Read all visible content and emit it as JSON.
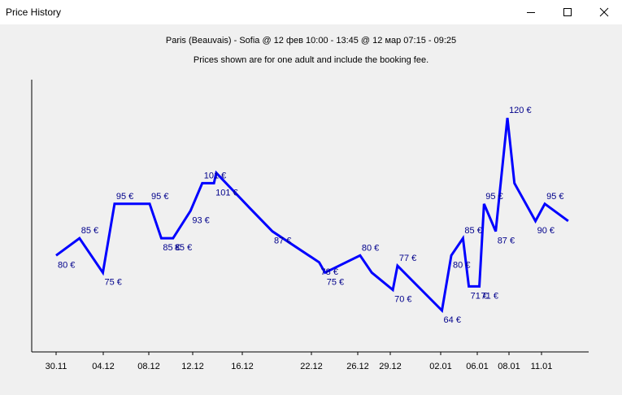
{
  "window": {
    "title": "Price History",
    "minimize_icon": "minimize-icon",
    "maximize_icon": "maximize-icon",
    "close_icon": "close-icon"
  },
  "header": {
    "route": "Paris (Beauvais) - Sofia @ 12 фев 10:00 - 13:45 @ 12 мар 07:15 - 09:25",
    "note": "Prices shown are for one adult and include the booking fee."
  },
  "chart_data": {
    "type": "line",
    "title": "",
    "xlabel": "",
    "ylabel": "",
    "line_color": "#0000ff",
    "label_color": "#00008b",
    "grid": false,
    "ylim": [
      55,
      128
    ],
    "x_ticks": [
      "30.11",
      "04.12",
      "08.12",
      "12.12",
      "16.12",
      "22.12",
      "26.12",
      "29.12",
      "02.01",
      "06.01",
      "08.01",
      "11.01"
    ],
    "points": [
      {
        "day": 0,
        "price": 80,
        "label": "80 €"
      },
      {
        "day": 2,
        "price": 85,
        "label": "85 €"
      },
      {
        "day": 4,
        "price": 75,
        "label": "75 €"
      },
      {
        "day": 5,
        "price": 95,
        "label": "95 €"
      },
      {
        "day": 8,
        "price": 95,
        "label": "95 €"
      },
      {
        "day": 9,
        "price": 85,
        "label": "85 €"
      },
      {
        "day": 10,
        "price": 85,
        "label": "85 €"
      },
      {
        "day": 11.5,
        "price": 93,
        "label": "93 €"
      },
      {
        "day": 12.5,
        "price": 101,
        "label": "101 €"
      },
      {
        "day": 13.5,
        "price": 101,
        "label": "101 €"
      },
      {
        "day": 13.7,
        "price": 104,
        "label": ""
      },
      {
        "day": 16.5,
        "price": 94,
        "label": ""
      },
      {
        "day": 18.5,
        "price": 87,
        "label": "87 €"
      },
      {
        "day": 22.5,
        "price": 78,
        "label": "78 €"
      },
      {
        "day": 23,
        "price": 75,
        "label": "75 €"
      },
      {
        "day": 26,
        "price": 80,
        "label": "80 €"
      },
      {
        "day": 27,
        "price": 75,
        "label": ""
      },
      {
        "day": 28.8,
        "price": 70,
        "label": "70 €"
      },
      {
        "day": 29.2,
        "price": 77,
        "label": "77 €"
      },
      {
        "day": 33,
        "price": 64,
        "label": "64 €"
      },
      {
        "day": 33.8,
        "price": 80,
        "label": "80 €"
      },
      {
        "day": 34.8,
        "price": 85,
        "label": "85 €"
      },
      {
        "day": 35.3,
        "price": 71,
        "label": "71 €"
      },
      {
        "day": 36.2,
        "price": 71,
        "label": "71 €"
      },
      {
        "day": 36.6,
        "price": 95,
        "label": "95 €"
      },
      {
        "day": 37.6,
        "price": 87,
        "label": "87 €"
      },
      {
        "day": 38.6,
        "price": 120,
        "label": "120 €"
      },
      {
        "day": 39.2,
        "price": 101,
        "label": ""
      },
      {
        "day": 41,
        "price": 90,
        "label": "90 €"
      },
      {
        "day": 41.8,
        "price": 95,
        "label": "95 €"
      },
      {
        "day": 43.8,
        "price": 90,
        "label": ""
      }
    ]
  }
}
